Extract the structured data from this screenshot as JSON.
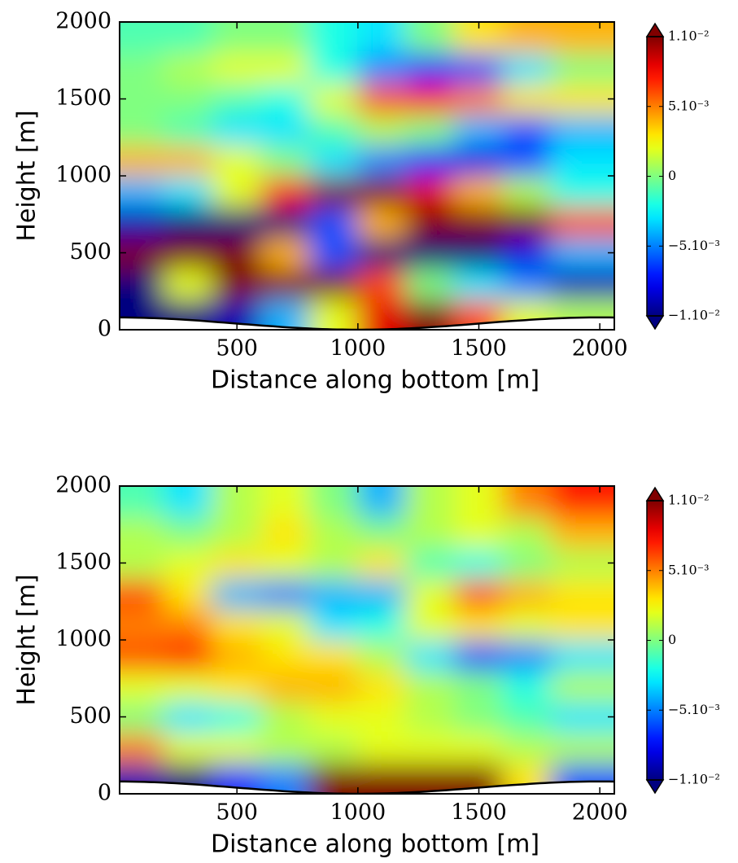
{
  "chart_data": [
    {
      "type": "heatmap",
      "xlabel": "Distance along bottom [m]",
      "ylabel": "Height [m]",
      "xlim": [
        15,
        2060
      ],
      "ylim": [
        0,
        2000
      ],
      "xticks": [
        500,
        1000,
        1500,
        2000
      ],
      "yticks": [
        0,
        500,
        1000,
        1500,
        2000
      ],
      "x": [
        100,
        300,
        500,
        700,
        900,
        1100,
        1300,
        1500,
        1700,
        1900
      ],
      "y": [
        100,
        300,
        500,
        700,
        900,
        1100,
        1300,
        1500,
        1700,
        1900
      ],
      "z": [
        [
          -0.012,
          -0.011,
          -0.009,
          -0.004,
          0.002,
          0.008,
          0.01,
          0.006,
          0.002,
          0.001
        ],
        [
          -0.011,
          0.002,
          0.012,
          0.012,
          0.011,
          0.006,
          0,
          -0.003,
          -0.005,
          -0.009
        ],
        [
          0.011,
          0.012,
          0.01,
          0.004,
          -0.006,
          -0.011,
          -0.011,
          -0.01,
          -0.008,
          -0.004
        ],
        [
          -0.009,
          -0.01,
          -0.011,
          -0.011,
          -0.006,
          0.004,
          0.01,
          0.011,
          0.011,
          0.006
        ],
        [
          -0.004,
          -0.003,
          0.002,
          0.007,
          0.01,
          0.011,
          0.008,
          0.004,
          0.001,
          -0.002
        ],
        [
          0.004,
          0.004,
          0.002,
          0,
          -0.003,
          -0.005,
          -0.007,
          -0.008,
          -0.006,
          -0.003
        ],
        [
          0,
          -0.001,
          -0.003,
          -0.003,
          -0.001,
          0.001,
          0,
          -0.004,
          -0.006,
          -0.004
        ],
        [
          0,
          0,
          -0.001,
          -0.002,
          0.002,
          0.006,
          0.007,
          0.005,
          0.003,
          0.003
        ],
        [
          0,
          0.001,
          0.002,
          0.002,
          -0.002,
          -0.005,
          -0.007,
          -0.006,
          -0.003,
          0
        ],
        [
          -0.001,
          -0.001,
          0,
          0,
          -0.002,
          -0.003,
          0,
          0.003,
          0.004,
          0.004
        ]
      ],
      "colorbar": {
        "clim": [
          -0.01,
          0.01
        ],
        "ticks": [
          {
            "value": 0.01,
            "label": "1.10⁻²"
          },
          {
            "value": 0.005,
            "label": "5.10⁻³"
          },
          0,
          {
            "value": -0.005,
            "label": "−5.10⁻³"
          },
          {
            "value": -0.01,
            "label": "−1.10⁻²"
          }
        ]
      }
    },
    {
      "type": "heatmap",
      "xlabel": "Distance along bottom [m]",
      "ylabel": "Height [m]",
      "xlim": [
        15,
        2060
      ],
      "ylim": [
        0,
        2000
      ],
      "xticks": [
        500,
        1000,
        1500,
        2000
      ],
      "yticks": [
        0,
        500,
        1000,
        1500,
        2000
      ],
      "x": [
        100,
        300,
        500,
        700,
        900,
        1100,
        1300,
        1500,
        1700,
        1900
      ],
      "y": [
        100,
        300,
        500,
        700,
        900,
        1100,
        1300,
        1500,
        1700,
        1900
      ],
      "z": [
        [
          -0.009,
          -0.01,
          -0.007,
          -0.005,
          0.01,
          0.012,
          0.012,
          0.01,
          0.003,
          -0.006
        ],
        [
          0.005,
          0.002,
          0.002,
          0.001,
          0.001,
          0.002,
          0.002,
          0.002,
          0.001,
          0.001
        ],
        [
          0,
          -0.003,
          -0.002,
          0.001,
          0.002,
          0.002,
          0.001,
          0,
          -0.001,
          -0.003
        ],
        [
          0.002,
          0.002,
          0.003,
          0.004,
          0.004,
          0.003,
          0.001,
          0,
          -0.002,
          0.001
        ],
        [
          0.006,
          0.007,
          0.004,
          0.003,
          0.003,
          0.001,
          -0.003,
          -0.006,
          -0.005,
          -0.003
        ],
        [
          0.005,
          0.005,
          0.003,
          0.002,
          -0.003,
          -0.002,
          0.002,
          0.003,
          0.002,
          0.003
        ],
        [
          0.006,
          0.003,
          -0.004,
          -0.005,
          -0.004,
          -0.004,
          0.002,
          0.006,
          0.004,
          0.003
        ],
        [
          0.001,
          0.002,
          0.003,
          0.002,
          0.001,
          0.003,
          -0.001,
          -0.002,
          0,
          0.001
        ],
        [
          0.001,
          0,
          0.001,
          0.003,
          0.001,
          0,
          0.001,
          0.002,
          0.001,
          0.004
        ],
        [
          -0.001,
          -0.003,
          0.001,
          0.002,
          0,
          -0.004,
          0.001,
          0.002,
          0.005,
          0.007
        ]
      ],
      "colorbar": {
        "clim": [
          -0.01,
          0.01
        ],
        "ticks": [
          {
            "value": 0.01,
            "label": "1.10⁻²"
          },
          {
            "value": 0.005,
            "label": "5.10⁻³"
          },
          0,
          {
            "value": -0.005,
            "label": "−5.10⁻³"
          },
          {
            "value": -0.01,
            "label": "−1.10⁻²"
          }
        ]
      }
    }
  ]
}
